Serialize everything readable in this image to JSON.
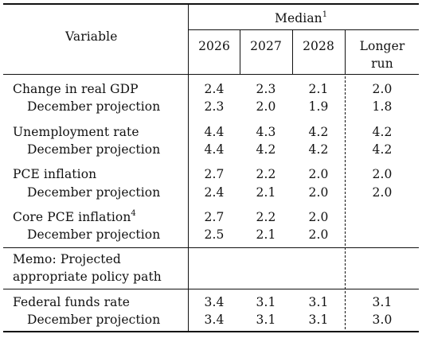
{
  "header": {
    "variable_label": "Variable",
    "median_label": "Median",
    "median_footnote": "1",
    "years": [
      "2026",
      "2027",
      "2028"
    ],
    "longer_run_line1": "Longer",
    "longer_run_line2": "run"
  },
  "rows": [
    {
      "label": "Change in real GDP",
      "footnote": "",
      "values": [
        "2.4",
        "2.3",
        "2.1",
        "2.0"
      ]
    },
    {
      "label": "December projection",
      "footnote": "",
      "values": [
        "2.3",
        "2.0",
        "1.9",
        "1.8"
      ]
    },
    {
      "label": "Unemployment rate",
      "footnote": "",
      "values": [
        "4.4",
        "4.3",
        "4.2",
        "4.2"
      ]
    },
    {
      "label": "December projection",
      "footnote": "",
      "values": [
        "4.4",
        "4.2",
        "4.2",
        "4.2"
      ]
    },
    {
      "label": "PCE inflation",
      "footnote": "",
      "values": [
        "2.7",
        "2.2",
        "2.0",
        "2.0"
      ]
    },
    {
      "label": "December projection",
      "footnote": "",
      "values": [
        "2.4",
        "2.1",
        "2.0",
        "2.0"
      ]
    },
    {
      "label": "Core PCE inflation",
      "footnote": "4",
      "values": [
        "2.7",
        "2.2",
        "2.0",
        ""
      ]
    },
    {
      "label": "December projection",
      "footnote": "",
      "values": [
        "2.5",
        "2.1",
        "2.0",
        ""
      ]
    }
  ],
  "memo": {
    "line1": "Memo: Projected",
    "line2": "appropriate policy path"
  },
  "policy_rows": [
    {
      "label": "Federal funds rate",
      "values": [
        "3.4",
        "3.1",
        "3.1",
        "3.1"
      ]
    },
    {
      "label": "December projection",
      "values": [
        "3.4",
        "3.1",
        "3.1",
        "3.0"
      ]
    }
  ]
}
